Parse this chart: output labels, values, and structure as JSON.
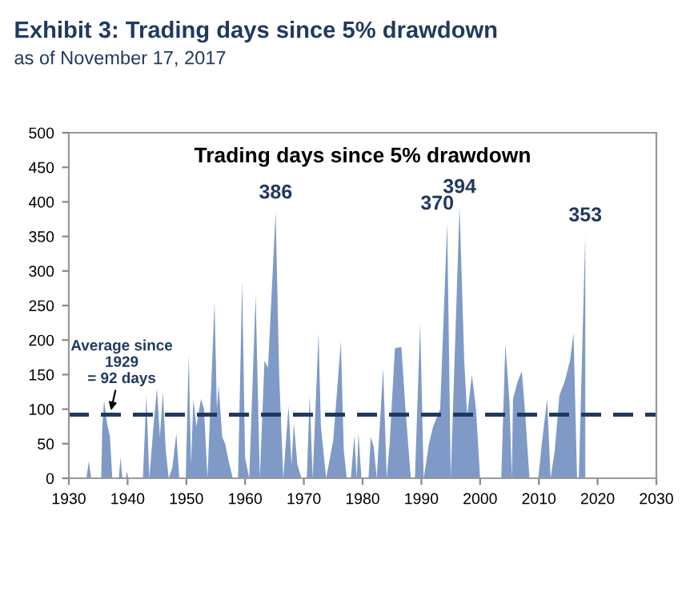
{
  "chart_data": {
    "type": "area",
    "title": "Exhibit 3: Trading days since 5% drawdown",
    "subtitle": "as of November 17, 2017",
    "annotations": [
      "Trading days since 5% drawdown",
      {
        "text": "Average since\n1929\n= 92 days",
        "x": 1937,
        "y": 92
      },
      {
        "text": "386",
        "x": 1965.2,
        "y": 386
      },
      {
        "text": "370",
        "x": 1994.4,
        "y": 370
      },
      {
        "text": "394",
        "x": 1996.5,
        "y": 394
      },
      {
        "text": "353",
        "x": 2017.9,
        "y": 353
      }
    ],
    "x": [
      1930,
      1933.0,
      1933.4,
      1933.8,
      1935.5,
      1935.7,
      1936.0,
      1936.5,
      1937.0,
      1937.4,
      1938.5,
      1938.8,
      1939.1,
      1939.7,
      1939.9,
      1940.1,
      1942.6,
      1943.2,
      1943.7,
      1944.4,
      1945.0,
      1945.5,
      1946.0,
      1946.5,
      1947.0,
      1947.6,
      1948.3,
      1948.8,
      1949.9,
      1950.4,
      1950.8,
      1951.2,
      1951.7,
      1952.5,
      1953.0,
      1953.6,
      1954.8,
      1955.2,
      1955.5,
      1956.1,
      1956.6,
      1957.2,
      1957.9,
      1958.8,
      1959.5,
      1960.0,
      1960.7,
      1961.8,
      1962.5,
      1963.3,
      1963.9,
      1965.2,
      1965.8,
      1966.5,
      1967.4,
      1967.9,
      1968.3,
      1968.9,
      1969.6,
      1970.5,
      1971.0,
      1971.5,
      1972.5,
      1972.9,
      1973.8,
      1975.0,
      1976.3,
      1976.8,
      1977.3,
      1978.0,
      1978.6,
      1979.0,
      1979.3,
      1979.8,
      1981.0,
      1981.4,
      1981.9,
      1982.4,
      1983.5,
      1984.1,
      1984.6,
      1985.5,
      1986.6,
      1987.3,
      1988.2,
      1988.9,
      1989.8,
      1990.4,
      1991.3,
      1992.0,
      1993.2,
      1994.4,
      1995.0,
      1996.5,
      1997.3,
      1997.8,
      1998.6,
      1999.3,
      2000.0,
      2003.6,
      2004.3,
      2005.0,
      2005.4,
      2005.6,
      2006.4,
      2007.1,
      2007.7,
      2008.4,
      2009.9,
      2010.5,
      2011.4,
      2012.0,
      2012.7,
      2013.5,
      2014.4,
      2015.3,
      2015.9,
      2016.5,
      2016.8,
      2017.9
    ],
    "values": [
      0,
      0,
      25,
      0,
      0,
      75,
      112,
      80,
      60,
      0,
      0,
      30,
      0,
      0,
      10,
      0,
      0,
      120,
      0,
      75,
      130,
      60,
      125,
      40,
      0,
      15,
      65,
      0,
      0,
      180,
      20,
      115,
      75,
      115,
      100,
      0,
      255,
      100,
      135,
      60,
      50,
      25,
      0,
      0,
      285,
      30,
      0,
      265,
      0,
      170,
      160,
      386,
      150,
      0,
      105,
      20,
      80,
      20,
      0,
      0,
      120,
      0,
      210,
      75,
      0,
      55,
      198,
      40,
      0,
      0,
      62,
      0,
      65,
      0,
      0,
      60,
      45,
      0,
      160,
      0,
      50,
      188,
      190,
      100,
      0,
      0,
      224,
      0,
      50,
      75,
      100,
      370,
      0,
      394,
      170,
      90,
      150,
      100,
      0,
      0,
      195,
      110,
      0,
      115,
      140,
      155,
      90,
      0,
      0,
      50,
      115,
      0,
      40,
      120,
      140,
      170,
      210,
      0,
      0,
      353
    ],
    "color": "#7f9ac6",
    "xlim": [
      1930,
      2030
    ],
    "xticks": [
      1930,
      1940,
      1950,
      1960,
      1970,
      1980,
      1990,
      2000,
      2010,
      2020,
      2030
    ],
    "ylim": [
      0,
      500
    ],
    "yticks": [
      0,
      50,
      100,
      150,
      200,
      250,
      300,
      350,
      400,
      450,
      500
    ],
    "ref_lines": [
      {
        "axis": "y",
        "value": 92,
        "color": "#1f3a5f",
        "line_style": "dashed"
      }
    ],
    "grid": false
  }
}
